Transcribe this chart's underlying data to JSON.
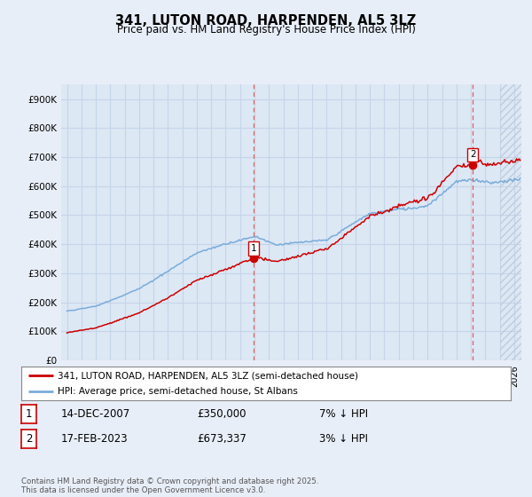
{
  "title": "341, LUTON ROAD, HARPENDEN, AL5 3LZ",
  "subtitle": "Price paid vs. HM Land Registry's House Price Index (HPI)",
  "ylim": [
    0,
    950000
  ],
  "yticks": [
    0,
    100000,
    200000,
    300000,
    400000,
    500000,
    600000,
    700000,
    800000,
    900000
  ],
  "ytick_labels": [
    "£0",
    "£100K",
    "£200K",
    "£300K",
    "£400K",
    "£500K",
    "£600K",
    "£700K",
    "£800K",
    "£900K"
  ],
  "background_color": "#e8eef8",
  "plot_bg_color": "#dde8f5",
  "grid_color": "#c5d5e8",
  "hatch_color": "#c0ccdc",
  "red_line_color": "#cc0000",
  "blue_line_color": "#7aacda",
  "sale1_x": 2007.958,
  "sale1_y": 350000,
  "sale1_label": "1",
  "sale2_x": 2023.125,
  "sale2_y": 673337,
  "sale2_label": "2",
  "vline_color": "#e06060",
  "hatch_start": 2025.0,
  "xmin": 1994.6,
  "xmax": 2026.5,
  "legend_label_red": "341, LUTON ROAD, HARPENDEN, AL5 3LZ (semi-detached house)",
  "legend_label_blue": "HPI: Average price, semi-detached house, St Albans",
  "annotation1_date": "14-DEC-2007",
  "annotation1_price": "£350,000",
  "annotation1_hpi": "7% ↓ HPI",
  "annotation2_date": "17-FEB-2023",
  "annotation2_price": "£673,337",
  "annotation2_hpi": "3% ↓ HPI",
  "footer": "Contains HM Land Registry data © Crown copyright and database right 2025.\nThis data is licensed under the Open Government Licence v3.0."
}
